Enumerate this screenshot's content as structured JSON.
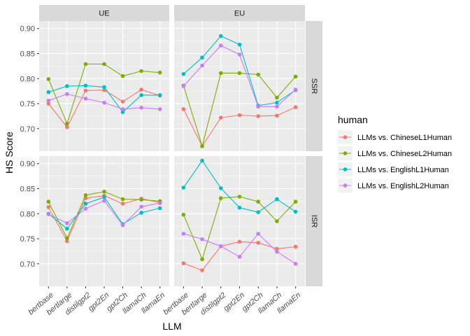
{
  "chart_data": {
    "type": "line",
    "xlabel": "LLM",
    "ylabel": "HS Score",
    "ylim": [
      0.655,
      0.915
    ],
    "yticks": [
      0.7,
      0.75,
      0.8,
      0.85,
      0.9
    ],
    "ytick_labels": [
      "0.70",
      "0.75",
      "0.80",
      "0.85",
      "0.90"
    ],
    "categories": [
      "bertbase",
      "bertlarge",
      "distilgpt2",
      "gpt2En",
      "gpt2Ch",
      "llamaCh",
      "llamaEn"
    ],
    "columns": [
      "UE",
      "EU"
    ],
    "rows": [
      "SSR",
      "ISR"
    ],
    "legend": {
      "title": "human",
      "position": "right",
      "entries": [
        "LLMs vs. ChineseL1Human",
        "LLMs vs. ChineseL2Human",
        "LLMs vs. EnglishL1Human",
        "LLMs vs. EnglishL2Human"
      ]
    },
    "colors": [
      "#F8766D",
      "#7CAE00",
      "#00BFC4",
      "#C77CFF"
    ],
    "panels": [
      {
        "col": "UE",
        "row": "SSR",
        "series": [
          {
            "name": "LLMs vs. ChineseL1Human",
            "values": [
              0.75,
              0.703,
              0.776,
              0.777,
              0.754,
              0.778,
              0.766
            ]
          },
          {
            "name": "LLMs vs. ChineseL2Human",
            "values": [
              0.799,
              0.71,
              0.829,
              0.829,
              0.805,
              0.815,
              0.812
            ]
          },
          {
            "name": "LLMs vs. EnglishL1Human",
            "values": [
              0.773,
              0.785,
              0.786,
              0.783,
              0.733,
              0.767,
              0.767
            ]
          },
          {
            "name": "LLMs vs. EnglishL2Human",
            "values": [
              0.756,
              0.769,
              0.76,
              0.752,
              0.739,
              0.742,
              0.739
            ]
          }
        ]
      },
      {
        "col": "EU",
        "row": "SSR",
        "series": [
          {
            "name": "LLMs vs. ChineseL1Human",
            "values": [
              0.739,
              0.665,
              0.722,
              0.727,
              0.725,
              0.726,
              0.743
            ]
          },
          {
            "name": "LLMs vs. ChineseL2Human",
            "values": [
              0.786,
              0.665,
              0.811,
              0.811,
              0.808,
              0.762,
              0.804
            ]
          },
          {
            "name": "LLMs vs. EnglishL1Human",
            "values": [
              0.809,
              0.842,
              0.885,
              0.868,
              0.746,
              0.752,
              0.777
            ]
          },
          {
            "name": "LLMs vs. EnglishL2Human",
            "values": [
              0.785,
              0.826,
              0.866,
              0.848,
              0.744,
              0.744,
              0.778
            ]
          }
        ]
      },
      {
        "col": "UE",
        "row": "ISR",
        "series": [
          {
            "name": "LLMs vs. ChineseL1Human",
            "values": [
              0.813,
              0.745,
              0.831,
              0.836,
              0.82,
              0.83,
              0.822
            ]
          },
          {
            "name": "LLMs vs. ChineseL2Human",
            "values": [
              0.824,
              0.751,
              0.837,
              0.844,
              0.829,
              0.828,
              0.825
            ]
          },
          {
            "name": "LLMs vs. EnglishL1Human",
            "values": [
              0.8,
              0.77,
              0.82,
              0.833,
              0.779,
              0.802,
              0.811
            ]
          },
          {
            "name": "LLMs vs. EnglishL2Human",
            "values": [
              0.799,
              0.781,
              0.81,
              0.826,
              0.777,
              0.814,
              0.821
            ]
          }
        ]
      },
      {
        "col": "EU",
        "row": "ISR",
        "series": [
          {
            "name": "LLMs vs. ChineseL1Human",
            "values": [
              0.701,
              0.687,
              0.735,
              0.744,
              0.742,
              0.73,
              0.734
            ]
          },
          {
            "name": "LLMs vs. ChineseL2Human",
            "values": [
              0.798,
              0.709,
              0.831,
              0.834,
              0.824,
              0.785,
              0.824
            ]
          },
          {
            "name": "LLMs vs. EnglishL1Human",
            "values": [
              0.852,
              0.906,
              0.851,
              0.812,
              0.803,
              0.829,
              0.804
            ]
          },
          {
            "name": "LLMs vs. EnglishL2Human",
            "values": [
              0.76,
              0.749,
              0.735,
              0.714,
              0.76,
              0.724,
              0.7
            ]
          }
        ]
      }
    ]
  }
}
